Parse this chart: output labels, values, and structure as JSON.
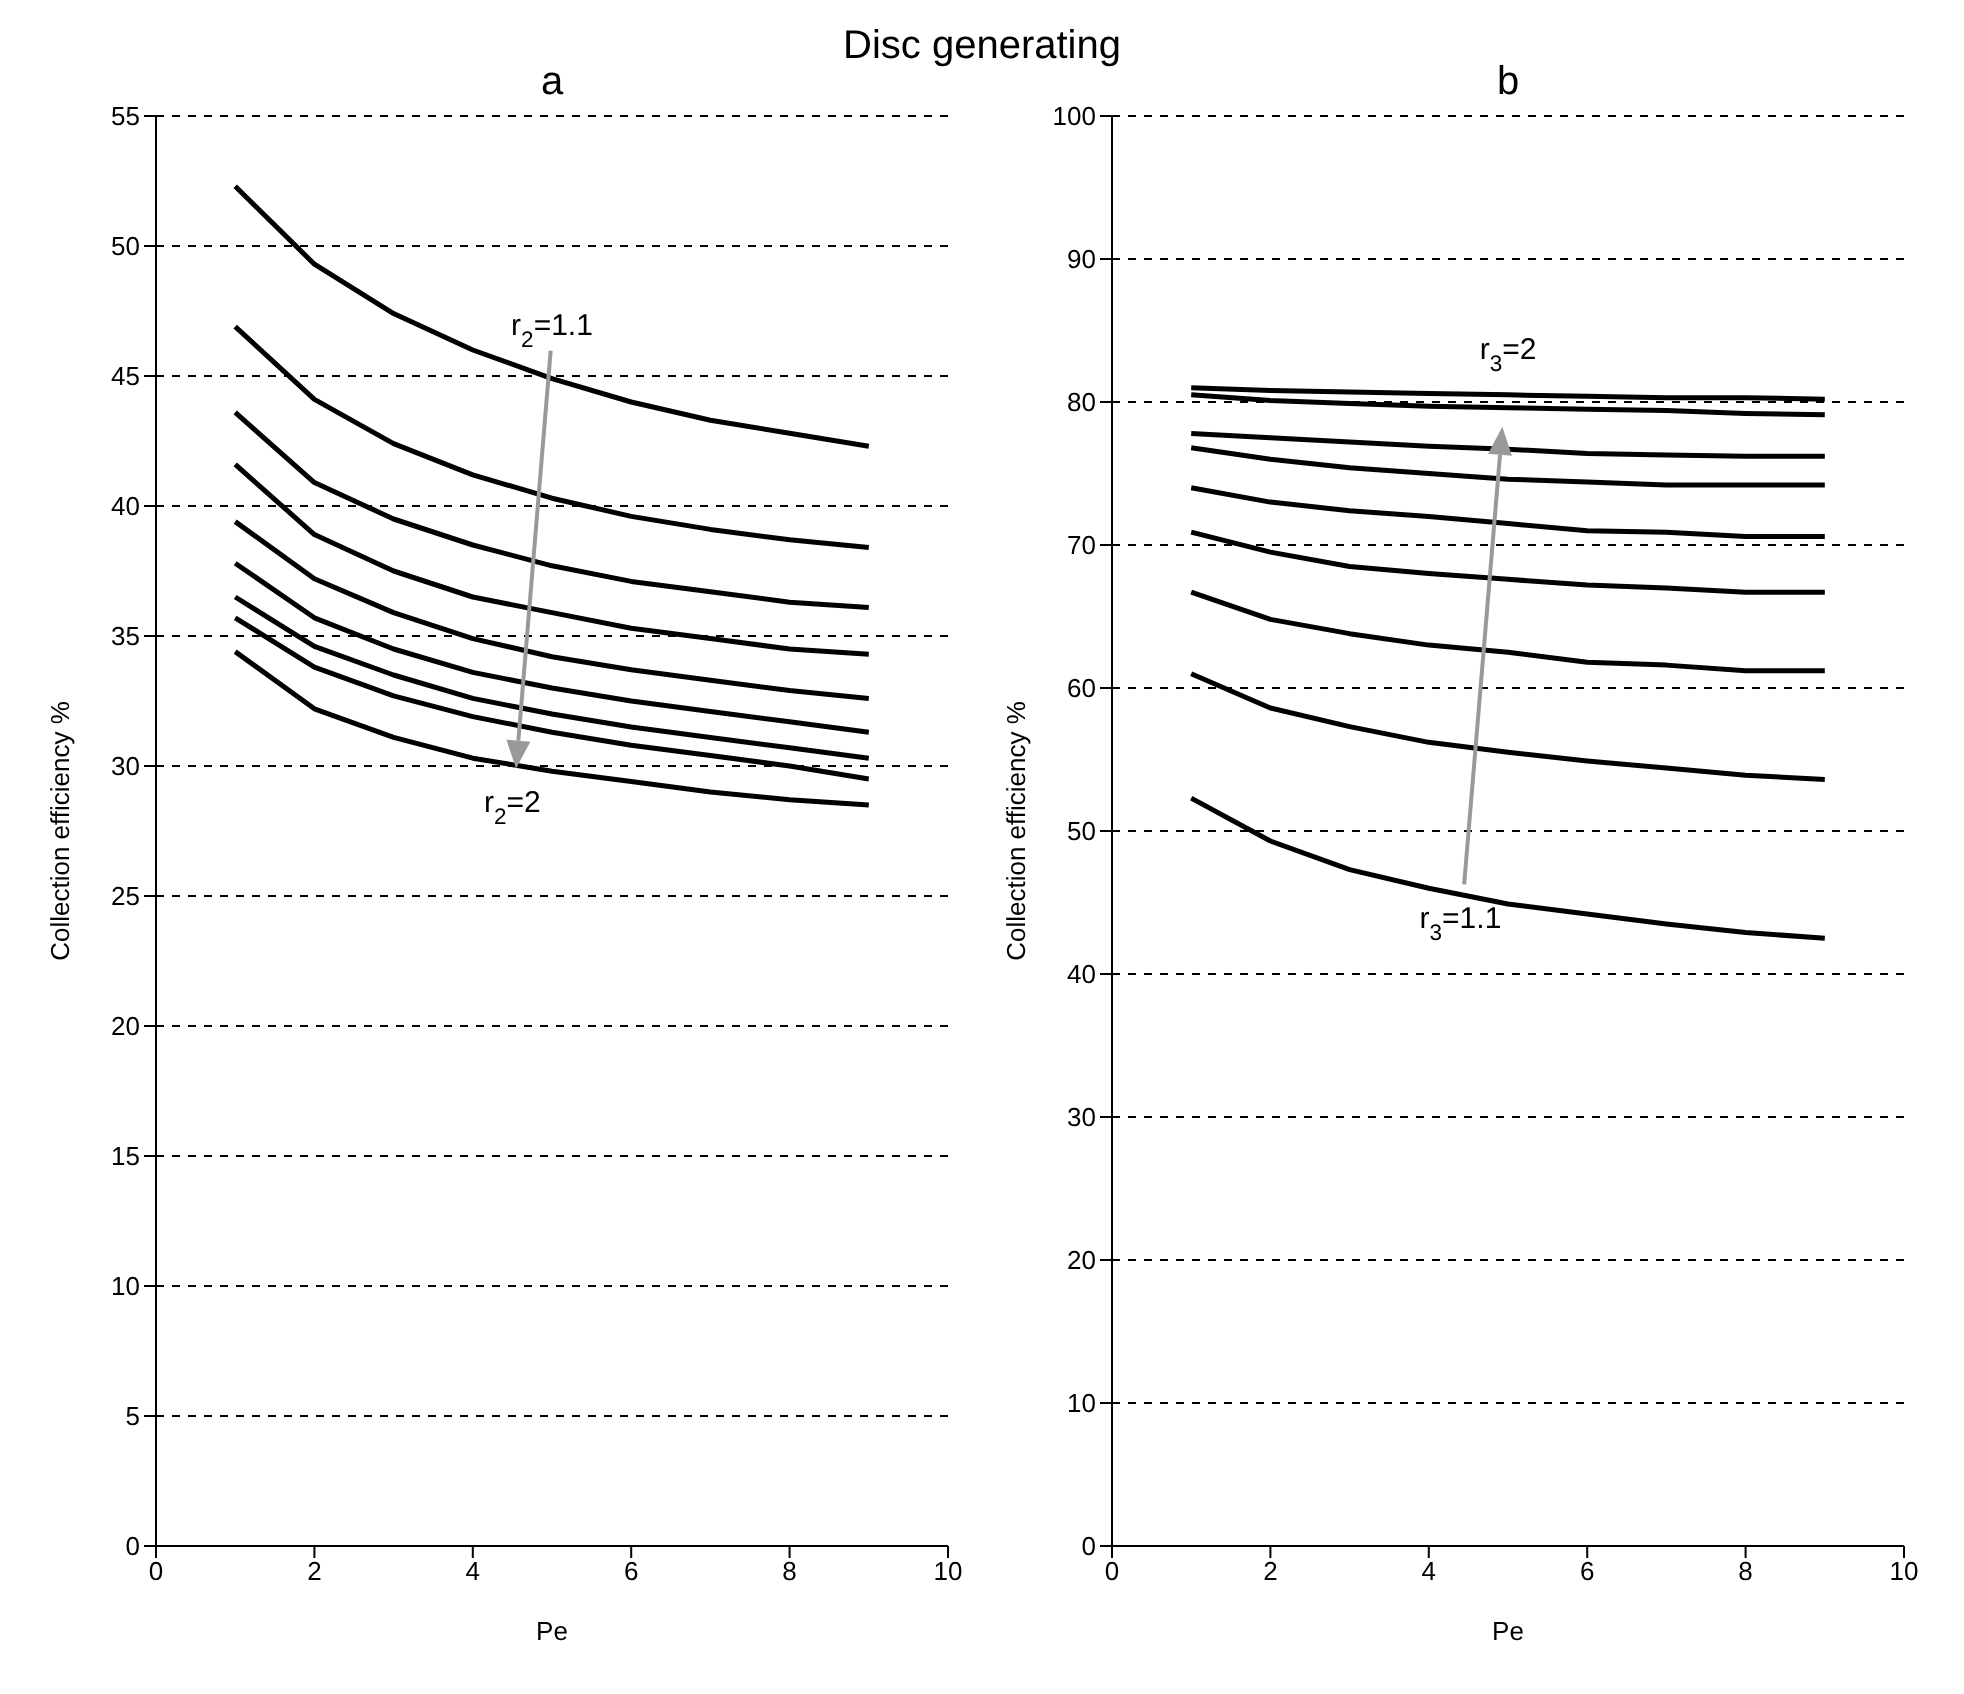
{
  "chart_data": [
    {
      "type": "line",
      "title": "a",
      "xlabel": "Pe",
      "ylabel": "Collection efficiency %",
      "x": [
        1,
        2,
        3,
        4,
        5,
        6,
        7,
        8,
        9
      ],
      "xlim": [
        0,
        10
      ],
      "xticks": [
        0,
        2,
        4,
        6,
        8,
        10
      ],
      "ylim": [
        0,
        55
      ],
      "yticks": [
        0,
        5,
        10,
        15,
        20,
        25,
        30,
        35,
        40,
        45,
        50,
        55
      ],
      "grid": "y",
      "marker": "none",
      "line_style": "solid",
      "annotations": [
        "Disc generating",
        "r$_{2}$=1.1",
        "r$_{2}$=2"
      ],
      "series": [
        {
          "color": "#000000",
          "values": [
            52.3,
            49.3,
            47.4,
            46.0,
            44.9,
            44.0,
            43.3,
            42.8,
            42.3
          ]
        },
        {
          "color": "#000000",
          "values": [
            46.9,
            44.1,
            42.4,
            41.2,
            40.3,
            39.6,
            39.1,
            38.7,
            38.4
          ]
        },
        {
          "color": "#000000",
          "values": [
            43.6,
            40.9,
            39.5,
            38.5,
            37.7,
            37.1,
            36.7,
            36.3,
            36.1
          ]
        },
        {
          "color": "#000000",
          "values": [
            41.6,
            38.9,
            37.5,
            36.5,
            35.9,
            35.3,
            34.9,
            34.5,
            34.3
          ]
        },
        {
          "color": "#000000",
          "values": [
            39.4,
            37.2,
            35.9,
            34.9,
            34.2,
            33.7,
            33.3,
            32.9,
            32.6
          ]
        },
        {
          "color": "#000000",
          "values": [
            37.8,
            35.7,
            34.5,
            33.6,
            33.0,
            32.5,
            32.1,
            31.7,
            31.3
          ]
        },
        {
          "color": "#000000",
          "values": [
            36.5,
            34.6,
            33.5,
            32.6,
            32.0,
            31.5,
            31.1,
            30.7,
            30.3
          ]
        },
        {
          "color": "#000000",
          "values": [
            35.7,
            33.8,
            32.7,
            31.9,
            31.3,
            30.8,
            30.4,
            30.0,
            29.5
          ]
        },
        {
          "color": "#000000",
          "values": [
            34.4,
            32.2,
            31.1,
            30.3,
            29.8,
            29.4,
            29.0,
            28.7,
            28.5
          ]
        }
      ]
    },
    {
      "type": "line",
      "title": "b",
      "xlabel": "Pe",
      "ylabel": "Collection efficiency %",
      "x": [
        1,
        2,
        3,
        4,
        5,
        6,
        7,
        8,
        9
      ],
      "xlim": [
        0,
        10
      ],
      "xticks": [
        0,
        2,
        4,
        6,
        8,
        10
      ],
      "ylim": [
        0,
        100
      ],
      "yticks": [
        0,
        10,
        20,
        30,
        40,
        50,
        60,
        70,
        80,
        90,
        100
      ],
      "grid": "y",
      "marker": "none",
      "line_style": "solid",
      "annotations": [
        "r$_{3}$=1.1",
        "r$_{3}$=2"
      ],
      "series": [
        {
          "color": "#000000",
          "values": [
            52.3,
            49.3,
            47.3,
            46.0,
            44.9,
            44.2,
            43.5,
            42.9,
            42.5
          ]
        },
        {
          "color": "#000000",
          "values": [
            61.0,
            58.6,
            57.3,
            56.2,
            55.5,
            54.9,
            54.4,
            53.9,
            53.6
          ]
        },
        {
          "color": "#000000",
          "values": [
            66.7,
            64.8,
            63.8,
            63.0,
            62.5,
            61.8,
            61.6,
            61.2,
            61.2
          ]
        },
        {
          "color": "#000000",
          "values": [
            70.9,
            69.5,
            68.5,
            68.0,
            67.6,
            67.2,
            67.0,
            66.7,
            66.7
          ]
        },
        {
          "color": "#000000",
          "values": [
            74.0,
            73.0,
            72.4,
            72.0,
            71.5,
            71.0,
            70.9,
            70.6,
            70.6
          ]
        },
        {
          "color": "#000000",
          "values": [
            76.8,
            76.0,
            75.4,
            75.0,
            74.6,
            74.4,
            74.2,
            74.2,
            74.2
          ]
        },
        {
          "color": "#000000",
          "values": [
            77.8,
            77.5,
            77.2,
            76.9,
            76.7,
            76.4,
            76.3,
            76.2,
            76.2
          ]
        },
        {
          "color": "#000000",
          "values": [
            80.5,
            80.1,
            79.9,
            79.7,
            79.6,
            79.5,
            79.4,
            79.2,
            79.1
          ]
        },
        {
          "color": "#000000",
          "values": [
            81.0,
            80.8,
            80.7,
            80.6,
            80.5,
            80.4,
            80.3,
            80.3,
            80.2
          ]
        }
      ]
    }
  ]
}
